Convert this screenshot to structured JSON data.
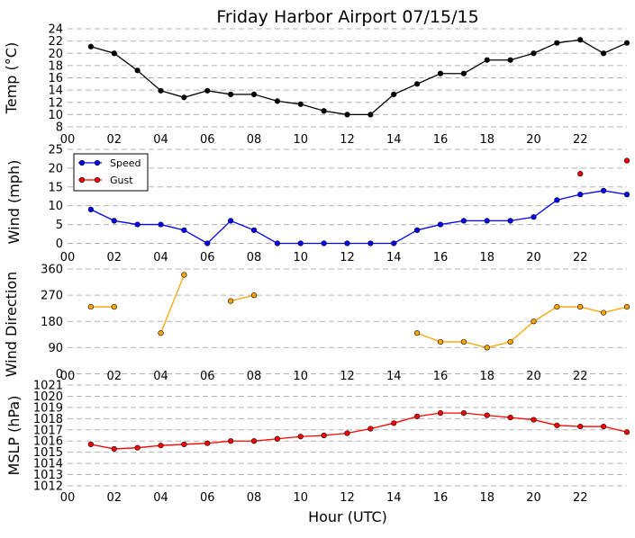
{
  "title": "Friday Harbor Airport 07/15/15",
  "x_tick_labels": [
    "00",
    "02",
    "04",
    "06",
    "08",
    "10",
    "12",
    "14",
    "16",
    "18",
    "20",
    "22"
  ],
  "x_label": "Hour (UTC)",
  "colors": {
    "temp": "#000000",
    "speed": "#0000ff",
    "gust": "#ff0000",
    "direction": "#ffa500",
    "mslp": "#ff0000",
    "grid": "#b0b0b0"
  },
  "chart_data": [
    {
      "type": "line",
      "id": "temp",
      "ylabel": "Temp (°C)",
      "ylim": [
        8,
        24
      ],
      "yticks": [
        8,
        10,
        12,
        14,
        16,
        18,
        20,
        22,
        24
      ],
      "xlim": [
        0,
        24
      ],
      "grid": true,
      "series": [
        {
          "x": [
            1,
            2,
            3,
            4,
            5,
            6,
            7,
            8,
            9,
            10,
            11,
            12,
            13,
            14,
            15,
            16,
            17,
            18,
            19,
            20,
            21,
            22,
            23,
            24
          ],
          "values": [
            21.1,
            20.0,
            17.2,
            13.9,
            12.8,
            13.9,
            13.3,
            13.3,
            12.2,
            11.7,
            10.6,
            10.0,
            10.0,
            13.3,
            15.0,
            16.7,
            16.7,
            18.9,
            18.9,
            20.0,
            21.7,
            22.2,
            20.0,
            21.7
          ]
        }
      ]
    },
    {
      "type": "line",
      "id": "wind",
      "ylabel": "Wind (mph)",
      "ylim": [
        -3,
        25
      ],
      "yticks": [
        0,
        5,
        10,
        15,
        20,
        25
      ],
      "xlim": [
        0,
        24
      ],
      "grid": true,
      "legend": "top-left",
      "series": [
        {
          "name": "Speed",
          "x": [
            1,
            2,
            3,
            4,
            5,
            6,
            7,
            8,
            9,
            10,
            11,
            12,
            13,
            14,
            15,
            16,
            17,
            18,
            19,
            20,
            21,
            22,
            23,
            24
          ],
          "values": [
            9,
            6,
            5,
            5,
            3.5,
            0,
            6,
            3.5,
            0,
            0,
            0,
            0,
            0,
            0,
            3.5,
            5,
            6,
            6,
            6,
            7,
            11.5,
            13,
            14,
            13
          ]
        },
        {
          "name": "Gust",
          "x": [
            22,
            24
          ],
          "values": [
            18.5,
            22
          ]
        }
      ]
    },
    {
      "type": "line",
      "id": "direction",
      "ylabel": "Wind Direction",
      "ylim": [
        -20,
        360
      ],
      "yticks": [
        0,
        90,
        180,
        270,
        360
      ],
      "xlim": [
        0,
        24
      ],
      "grid": true,
      "segments": [
        {
          "x": [
            1,
            2
          ],
          "values": [
            230,
            230
          ]
        },
        {
          "x": [
            4,
            5
          ],
          "values": [
            140,
            340
          ]
        },
        {
          "x": [
            7,
            8
          ],
          "values": [
            250,
            270
          ]
        },
        {
          "x": [
            15,
            16,
            17,
            18,
            19,
            20,
            21,
            22,
            23,
            24
          ],
          "values": [
            140,
            110,
            110,
            90,
            110,
            180,
            230,
            230,
            210,
            230
          ]
        }
      ]
    },
    {
      "type": "line",
      "id": "mslp",
      "ylabel": "MSLP (hPa)",
      "ylim": [
        1012,
        1021
      ],
      "yticks": [
        1012,
        1013,
        1014,
        1015,
        1016,
        1017,
        1018,
        1019,
        1020,
        1021
      ],
      "xlim": [
        0,
        24
      ],
      "grid": true,
      "series": [
        {
          "x": [
            1,
            2,
            3,
            4,
            5,
            6,
            7,
            8,
            9,
            10,
            11,
            12,
            13,
            14,
            15,
            16,
            17,
            18,
            19,
            20,
            21,
            22,
            23,
            24
          ],
          "values": [
            1015.7,
            1015.3,
            1015.4,
            1015.6,
            1015.7,
            1015.8,
            1016.0,
            1016.0,
            1016.2,
            1016.4,
            1016.5,
            1016.7,
            1017.1,
            1017.6,
            1018.2,
            1018.5,
            1018.5,
            1018.3,
            1018.1,
            1017.9,
            1017.4,
            1017.3,
            1017.3,
            1016.8
          ]
        }
      ]
    }
  ]
}
